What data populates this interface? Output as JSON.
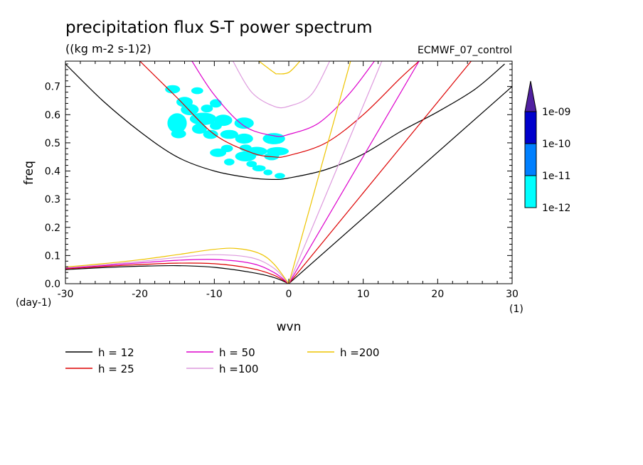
{
  "chart_data": {
    "type": "line",
    "title": "precipitation flux S-T power spectrum",
    "subtitle": "((kg m-2 s-1)2)",
    "model_label": "ECMWF_07_control",
    "xlabel": "wvn",
    "ylabel": "freq",
    "x_unit": "(1)",
    "y_unit": "(day-1)",
    "xlim": [
      -30,
      30
    ],
    "ylim": [
      0,
      0.79
    ],
    "x_ticks": [
      -30,
      -20,
      -10,
      0,
      10,
      20,
      30
    ],
    "x_tick_labels": [
      "-30",
      "-20",
      "-10",
      "0",
      "10",
      "20",
      "30"
    ],
    "y_ticks": [
      0,
      0.1,
      0.2,
      0.3,
      0.4,
      0.5,
      0.6,
      0.7
    ],
    "y_tick_labels": [
      "0.0",
      "0.1",
      "0.2",
      "0.3",
      "0.4",
      "0.5",
      "0.6",
      "0.7"
    ],
    "grid": false,
    "legend_position": "bottom",
    "series": [
      {
        "name": "h = 12",
        "color": "#000000",
        "kelvin_points": [
          [
            0,
            0
          ],
          [
            30,
            0.7
          ]
        ],
        "rossby_points": [
          [
            -30,
            0.05
          ],
          [
            -25,
            0.057
          ],
          [
            -20,
            0.062
          ],
          [
            -15,
            0.064
          ],
          [
            -10,
            0.058
          ],
          [
            -5,
            0.04
          ],
          [
            -2,
            0.022
          ],
          [
            0,
            0
          ]
        ],
        "ig_points": [
          [
            -30,
            0.78
          ],
          [
            -25,
            0.65
          ],
          [
            -20,
            0.54
          ],
          [
            -15,
            0.45
          ],
          [
            -10,
            0.4
          ],
          [
            -5,
            0.375
          ],
          [
            -2,
            0.37
          ],
          [
            0,
            0.375
          ],
          [
            5,
            0.405
          ],
          [
            10,
            0.46
          ],
          [
            15,
            0.54
          ],
          [
            20,
            0.61
          ],
          [
            25,
            0.69
          ],
          [
            29,
            0.78
          ]
        ]
      },
      {
        "name": "h = 25",
        "color": "#dd0000",
        "kelvin_points": [
          [
            0,
            0
          ],
          [
            24.5,
            0.79
          ]
        ],
        "rossby_points": [
          [
            -30,
            0.053
          ],
          [
            -25,
            0.061
          ],
          [
            -20,
            0.068
          ],
          [
            -15,
            0.073
          ],
          [
            -10,
            0.071
          ],
          [
            -5,
            0.054
          ],
          [
            -2,
            0.03
          ],
          [
            0,
            0
          ]
        ],
        "ig_points": [
          [
            -20,
            0.79
          ],
          [
            -15,
            0.66
          ],
          [
            -10,
            0.53
          ],
          [
            -5,
            0.465
          ],
          [
            -2,
            0.45
          ],
          [
            0,
            0.455
          ],
          [
            5,
            0.5
          ],
          [
            10,
            0.6
          ],
          [
            15,
            0.73
          ],
          [
            17.5,
            0.79
          ]
        ]
      },
      {
        "name": "h = 50",
        "color": "#dd00cc",
        "kelvin_points": [
          [
            0,
            0
          ],
          [
            17.5,
            0.79
          ]
        ],
        "rossby_points": [
          [
            -30,
            0.055
          ],
          [
            -25,
            0.064
          ],
          [
            -20,
            0.074
          ],
          [
            -15,
            0.083
          ],
          [
            -10,
            0.086
          ],
          [
            -5,
            0.072
          ],
          [
            -2,
            0.04
          ],
          [
            0,
            0
          ]
        ],
        "ig_points": [
          [
            -13,
            0.79
          ],
          [
            -10,
            0.67
          ],
          [
            -6,
            0.56
          ],
          [
            -2,
            0.525
          ],
          [
            0,
            0.53
          ],
          [
            4,
            0.57
          ],
          [
            8,
            0.67
          ],
          [
            11.5,
            0.79
          ]
        ]
      },
      {
        "name": "h =100",
        "color": "#dd99dd",
        "kelvin_points": [
          [
            0,
            0
          ],
          [
            12.5,
            0.79
          ]
        ],
        "rossby_points": [
          [
            -30,
            0.057
          ],
          [
            -25,
            0.067
          ],
          [
            -20,
            0.079
          ],
          [
            -15,
            0.093
          ],
          [
            -10,
            0.103
          ],
          [
            -5,
            0.092
          ],
          [
            -2,
            0.055
          ],
          [
            0,
            0
          ]
        ],
        "ig_points": [
          [
            -7.5,
            0.79
          ],
          [
            -5,
            0.68
          ],
          [
            -2,
            0.63
          ],
          [
            0,
            0.63
          ],
          [
            3,
            0.67
          ],
          [
            5.5,
            0.79
          ]
        ]
      },
      {
        "name": "h =200",
        "color": "#eec400",
        "kelvin_points": [
          [
            0,
            0
          ],
          [
            8.3,
            0.79
          ]
        ],
        "rossby_points": [
          [
            -30,
            0.059
          ],
          [
            -25,
            0.071
          ],
          [
            -20,
            0.085
          ],
          [
            -15,
            0.103
          ],
          [
            -10,
            0.122
          ],
          [
            -7,
            0.125
          ],
          [
            -4,
            0.108
          ],
          [
            -2,
            0.07
          ],
          [
            0,
            0
          ]
        ],
        "ig_points": [
          [
            -4,
            0.79
          ],
          [
            -2,
            0.75
          ],
          [
            -1.5,
            0.745
          ],
          [
            0,
            0.75
          ],
          [
            1.5,
            0.79
          ]
        ]
      }
    ],
    "power_regions": [
      {
        "level": "1e-12",
        "blobs": [
          [
            -15.6,
            0.69,
            1.0,
            0.015
          ],
          [
            -12.3,
            0.685,
            0.8,
            0.012
          ],
          [
            -14.0,
            0.645,
            1.1,
            0.018
          ],
          [
            -9.8,
            0.64,
            0.8,
            0.015
          ],
          [
            -13.3,
            0.618,
            1.2,
            0.02
          ],
          [
            -11.0,
            0.622,
            0.8,
            0.014
          ],
          [
            -15.0,
            0.57,
            1.3,
            0.035
          ],
          [
            -11.5,
            0.585,
            1.8,
            0.022
          ],
          [
            -8.8,
            0.58,
            1.2,
            0.02
          ],
          [
            -6.0,
            0.57,
            1.3,
            0.02
          ],
          [
            -12.0,
            0.55,
            1.0,
            0.018
          ],
          [
            -9.8,
            0.56,
            0.8,
            0.014
          ],
          [
            -14.8,
            0.532,
            1.0,
            0.016
          ],
          [
            -10.5,
            0.53,
            1.0,
            0.016
          ],
          [
            -8.0,
            0.53,
            1.2,
            0.016
          ],
          [
            -6.0,
            0.515,
            1.2,
            0.018
          ],
          [
            -2.0,
            0.515,
            1.5,
            0.02
          ],
          [
            -1.5,
            0.47,
            1.5,
            0.015
          ],
          [
            -4.3,
            0.47,
            1.4,
            0.016
          ],
          [
            -5.8,
            0.482,
            0.8,
            0.012
          ],
          [
            -8.3,
            0.48,
            0.8,
            0.013
          ],
          [
            -9.5,
            0.465,
            1.1,
            0.015
          ],
          [
            -5.8,
            0.452,
            1.4,
            0.018
          ],
          [
            -2.3,
            0.452,
            1.0,
            0.014
          ],
          [
            -8.0,
            0.432,
            0.7,
            0.012
          ],
          [
            -5.0,
            0.425,
            0.7,
            0.011
          ],
          [
            -4.0,
            0.41,
            0.9,
            0.011
          ],
          [
            -2.8,
            0.395,
            0.6,
            0.01
          ],
          [
            -1.2,
            0.383,
            0.7,
            0.01
          ]
        ]
      }
    ],
    "colorbar": {
      "levels": [
        "1e-12",
        "1e-11",
        "1e-10",
        "1e-09"
      ],
      "colors": [
        "#00ffff",
        "#0080ff",
        "#0000cc",
        "#5020a0"
      ],
      "extend": "max"
    }
  }
}
